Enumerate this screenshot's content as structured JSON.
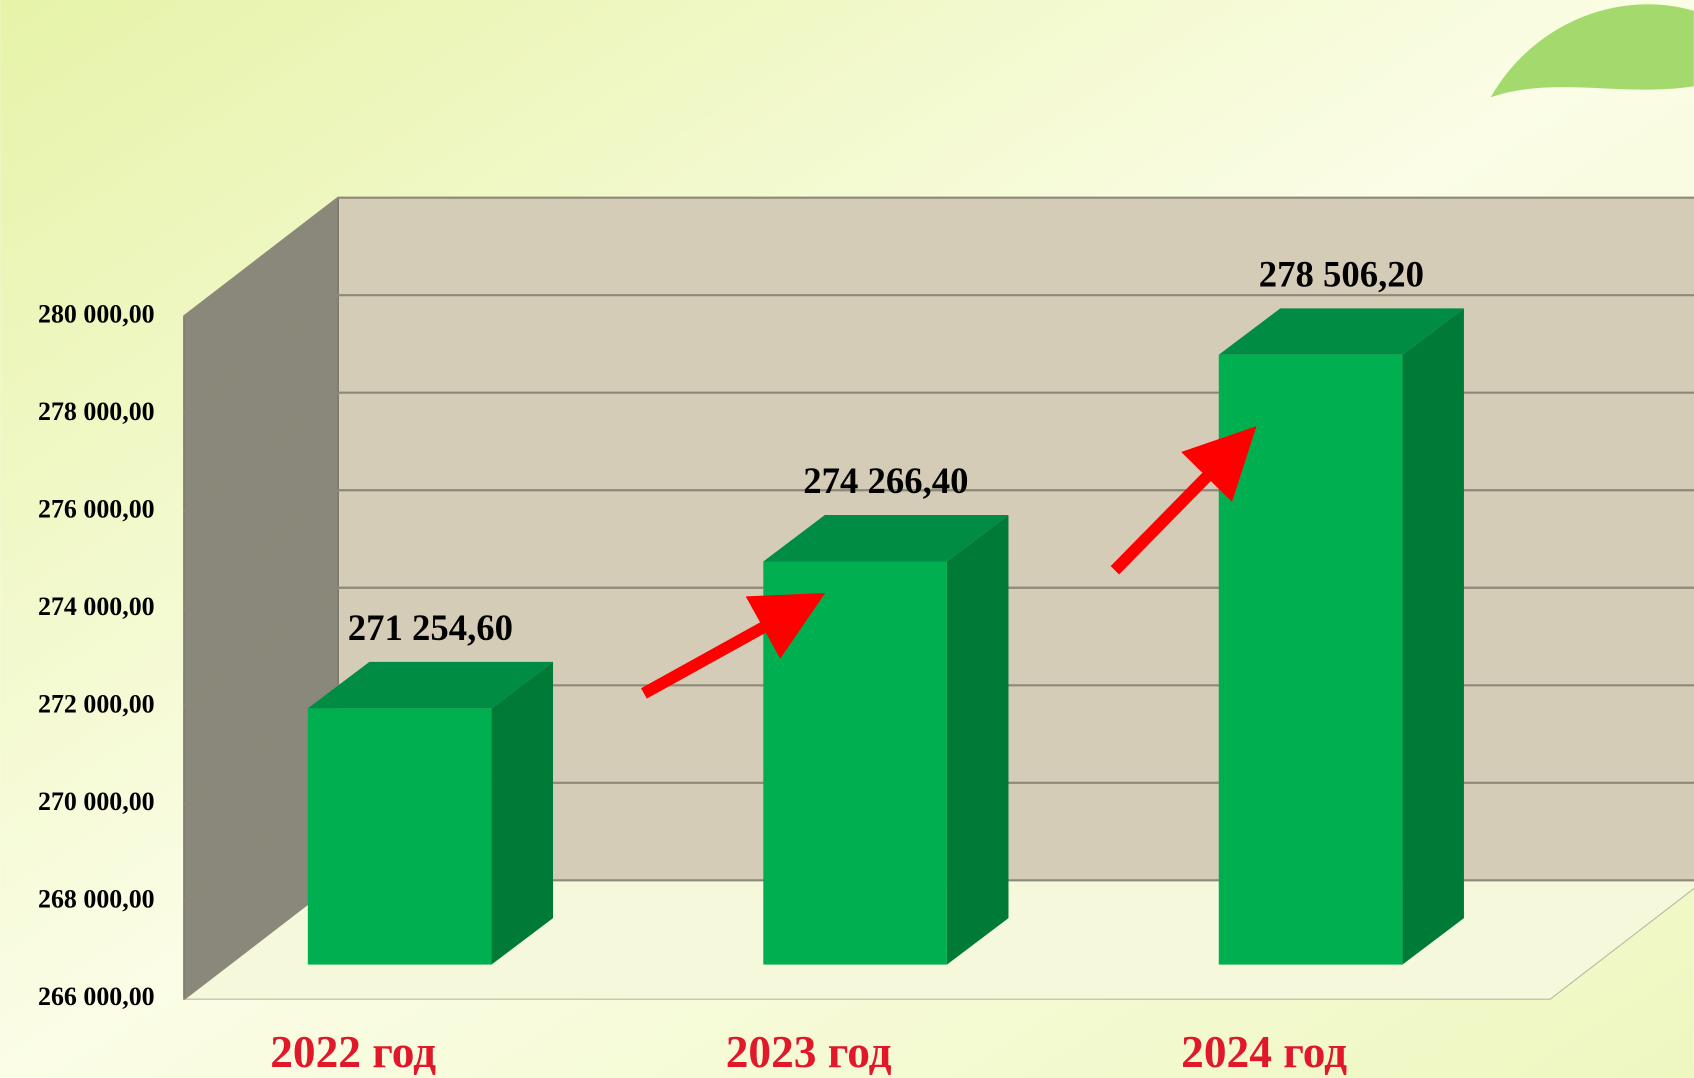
{
  "chart_data": {
    "type": "bar3d",
    "categories": [
      "2022 год",
      "2023 год",
      "2024 год"
    ],
    "values": [
      271254.6,
      274266.4,
      278506.2
    ],
    "value_labels": [
      "271 254,60",
      "274 266,40",
      "278 506,20"
    ],
    "color": "#00b050",
    "ylim": [
      266000,
      280000
    ],
    "yticks": [
      {
        "value": 266000,
        "label": "266 000,00"
      },
      {
        "value": 268000,
        "label": "268 000,00"
      },
      {
        "value": 270000,
        "label": "270 000,00"
      },
      {
        "value": 272000,
        "label": "272 000,00"
      },
      {
        "value": 274000,
        "label": "274 000,00"
      },
      {
        "value": 276000,
        "label": "276 000,00"
      },
      {
        "value": 278000,
        "label": "278 000,00"
      },
      {
        "value": 280000,
        "label": "280 000,00"
      }
    ],
    "grid": true
  }
}
